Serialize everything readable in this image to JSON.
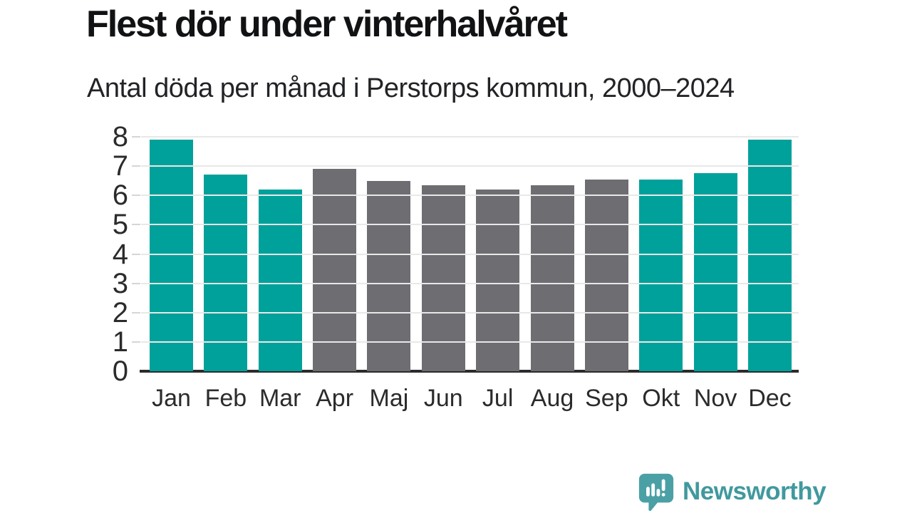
{
  "header": {
    "title": "Flest dör under vinterhalvåret",
    "subtitle": "Antal döda per månad i Perstorps kommun, 2000–2024"
  },
  "branding": {
    "label": "Newsworthy",
    "icon": "newsworthy-logo-icon",
    "icon_color": "#4BA0A5",
    "icon_glyph_color": "#ffffff",
    "text_color": "#40999E"
  },
  "colors": {
    "bar_highlight": "#00A19A",
    "bar_default": "#6E6D72",
    "gridline": "#E8E8E8",
    "axis_line": "#2B2B2B",
    "axis_text": "#2B2B2B",
    "title_text": "#111214"
  },
  "chart_data": {
    "type": "bar",
    "title": "Flest dör under vinterhalvåret",
    "subtitle": "Antal döda per månad i Perstorps kommun, 2000–2024",
    "categories": [
      "Jan",
      "Feb",
      "Mar",
      "Apr",
      "Maj",
      "Jun",
      "Jul",
      "Aug",
      "Sep",
      "Okt",
      "Nov",
      "Dec"
    ],
    "values": [
      7.9,
      6.7,
      6.2,
      6.9,
      6.5,
      6.35,
      6.2,
      6.35,
      6.55,
      6.55,
      6.75,
      7.9
    ],
    "highlighted": [
      true,
      true,
      true,
      false,
      false,
      false,
      false,
      false,
      false,
      true,
      true,
      true
    ],
    "highlight_meaning": "vinterhalvåret (Okt–Mar)",
    "xlabel": "",
    "ylabel": "",
    "ylim": [
      0,
      8
    ],
    "yticks": [
      0,
      1,
      2,
      3,
      4,
      5,
      6,
      7,
      8
    ],
    "grid": true,
    "legend": false
  }
}
